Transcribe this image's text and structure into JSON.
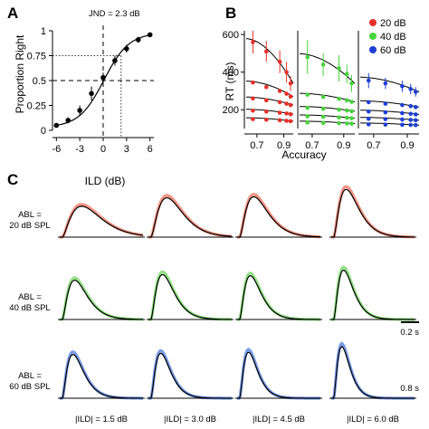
{
  "chart_data": [
    {
      "panel": "A",
      "type": "scatter",
      "annotation": "JND = 2.3 dB",
      "xlabel": "ILD (dB)",
      "ylabel": "Proportion Right",
      "xlim": [
        -6.5,
        6.5
      ],
      "ylim": [
        0,
        1
      ],
      "x_ticks": [
        "-6",
        "-3",
        "0",
        "3",
        "6"
      ],
      "y_ticks": [
        "0",
        "0.25",
        "0.5",
        "0.75",
        "1"
      ],
      "x": [
        -6,
        -4.5,
        -3,
        -1.5,
        0,
        1.5,
        3,
        4.5,
        6
      ],
      "y": [
        0.05,
        0.1,
        0.2,
        0.37,
        0.53,
        0.7,
        0.82,
        0.91,
        0.96
      ],
      "err": [
        0.02,
        0.03,
        0.05,
        0.07,
        0.05,
        0.05,
        0.04,
        0.03,
        0.02
      ],
      "reference_x": [
        0,
        2.3
      ],
      "reference_y": [
        0.5,
        0.75
      ]
    },
    {
      "panel": "B",
      "type": "scatter",
      "xlabel": "Accuracy",
      "ylabel": "RT (ms)",
      "xlim": [
        0.62,
        0.97
      ],
      "ylim": [
        100,
        620
      ],
      "x_ticks": [
        "0.7",
        "0.9"
      ],
      "y_ticks": [
        "200",
        "400",
        "600"
      ],
      "accuracy": [
        0.67,
        0.77,
        0.87,
        0.92,
        0.95
      ],
      "legend": [
        "20 dB",
        "40 dB",
        "60 dB"
      ],
      "legend_position": "top-right",
      "colors": [
        "#e8302a",
        "#46d43c",
        "#1d3fd6"
      ],
      "series": [
        {
          "name": "20 dB",
          "levels": [
            {
              "rt": [
                560,
                510,
                455,
                400,
                340
              ]
            },
            {
              "rt": [
                345,
                320,
                300,
                285,
                270
              ]
            },
            {
              "rt": [
                260,
                250,
                240,
                232,
                225
              ]
            },
            {
              "rt": [
                195,
                190,
                184,
                180,
                176
              ]
            },
            {
              "rt": [
                150,
                147,
                144,
                141,
                139
              ]
            }
          ],
          "top_err": [
            60,
            55,
            60,
            55,
            40
          ]
        },
        {
          "name": "40 dB",
          "levels": [
            {
              "rt": [
                480,
                440,
                420,
                390,
                340
              ]
            },
            {
              "rt": [
                280,
                268,
                258,
                250,
                242
              ]
            },
            {
              "rt": [
                210,
                205,
                200,
                196,
                192
              ]
            },
            {
              "rt": [
                165,
                162,
                159,
                157,
                155
              ]
            },
            {
              "rt": [
                132,
                130,
                128,
                127,
                126
              ]
            }
          ],
          "top_err": [
            90,
            60,
            70,
            50,
            45
          ]
        },
        {
          "name": "60 dB",
          "levels": [
            {
              "rt": [
                355,
                340,
                325,
                310,
                295
              ]
            },
            {
              "rt": [
                240,
                232,
                225,
                219,
                214
              ]
            },
            {
              "rt": [
                190,
                186,
                182,
                178,
                175
              ]
            },
            {
              "rt": [
                152,
                150,
                148,
                146,
                144
              ]
            },
            {
              "rt": [
                122,
                121,
                120,
                119,
                118
              ]
            }
          ],
          "top_err": [
            40,
            30,
            30,
            28,
            25
          ]
        }
      ]
    },
    {
      "panel": "C",
      "type": "line",
      "columns": [
        "|ILD| = 1.5 dB",
        "|ILD| = 3.0 dB",
        "|ILD| = 4.5 dB",
        "|ILD| = 6.0 dB"
      ],
      "rows": [
        {
          "label1": "ABL =",
          "label2": "20 dB SPL",
          "color": "#ef6f5c",
          "peaks": [
            0.55,
            0.7,
            0.72,
            0.85
          ],
          "peak_time": [
            0.22,
            0.18,
            0.16,
            0.14
          ]
        },
        {
          "label1": "ABL =",
          "label2": "40 dB SPL",
          "color": "#6fd65e",
          "peaks": [
            0.7,
            0.8,
            0.78,
            0.88
          ],
          "peak_time": [
            0.14,
            0.13,
            0.12,
            0.11
          ]
        },
        {
          "label1": "ABL =",
          "label2": "60 dB SPL",
          "color": "#4f78e0",
          "peaks": [
            0.78,
            0.8,
            0.82,
            0.92
          ],
          "peak_time": [
            0.12,
            0.11,
            0.1,
            0.09
          ]
        }
      ],
      "scale_bars": [
        "0.2 s",
        "0.8 s"
      ]
    }
  ]
}
